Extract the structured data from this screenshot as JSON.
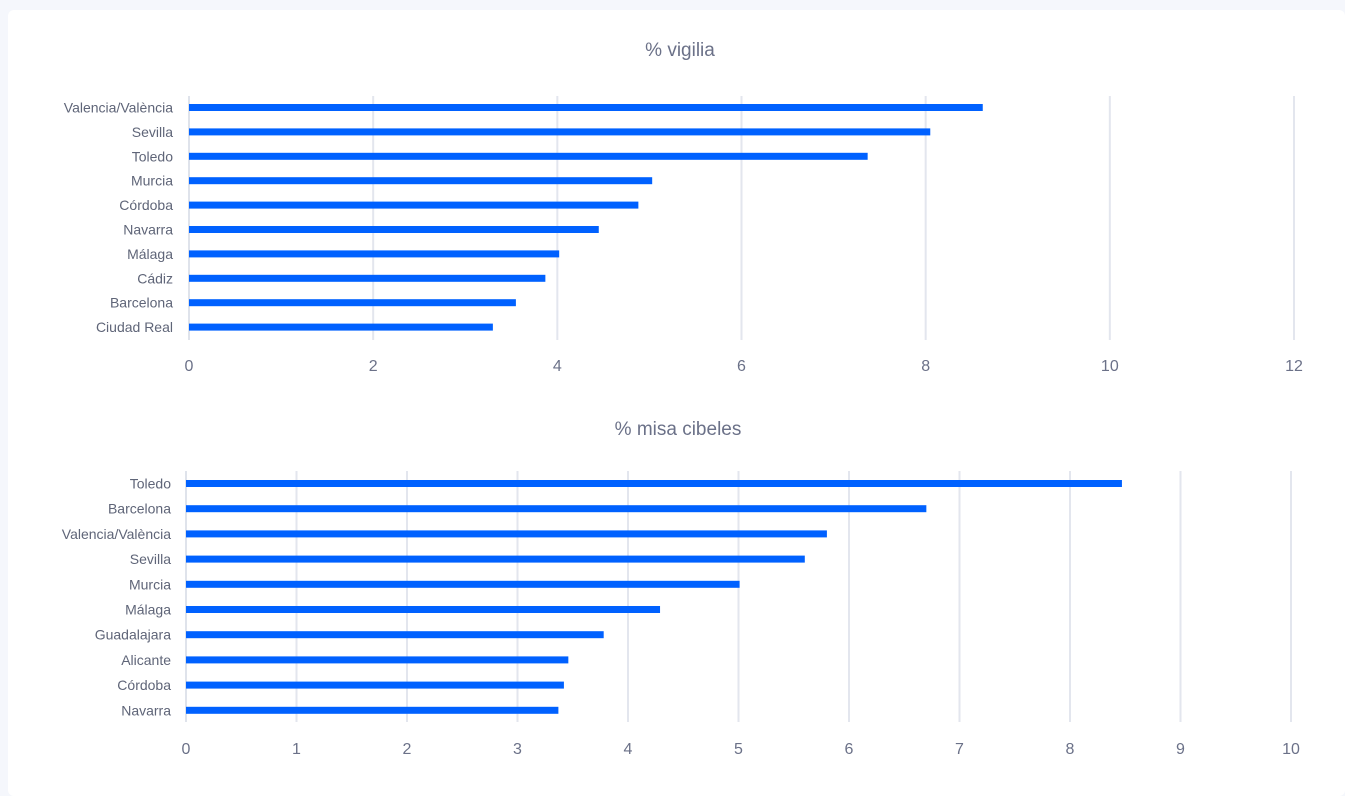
{
  "chart_data": [
    {
      "type": "bar",
      "orientation": "horizontal",
      "title": "% vigilia",
      "categories": [
        "Valencia/València",
        "Sevilla",
        "Toledo",
        "Murcia",
        "Córdoba",
        "Navarra",
        "Málaga",
        "Cádiz",
        "Barcelona",
        "Ciudad Real"
      ],
      "values": [
        8.62,
        8.05,
        7.37,
        5.03,
        4.88,
        4.45,
        4.02,
        3.87,
        3.55,
        3.3
      ],
      "xlim": [
        0,
        12
      ],
      "xticks": [
        0,
        2,
        4,
        6,
        8,
        10,
        12
      ],
      "grid": true,
      "color": "#0061ff"
    },
    {
      "type": "bar",
      "orientation": "horizontal",
      "title": "% misa cibeles",
      "categories": [
        "Toledo",
        "Barcelona",
        "Valencia/València",
        "Sevilla",
        "Murcia",
        "Málaga",
        "Guadalajara",
        "Alicante",
        "Córdoba",
        "Navarra"
      ],
      "values": [
        8.47,
        6.7,
        5.8,
        5.6,
        5.01,
        4.29,
        3.78,
        3.46,
        3.42,
        3.37
      ],
      "xlim": [
        0,
        10
      ],
      "xticks": [
        0,
        1,
        2,
        3,
        4,
        5,
        6,
        7,
        8,
        9,
        10
      ],
      "grid": true,
      "color": "#0061ff"
    }
  ]
}
